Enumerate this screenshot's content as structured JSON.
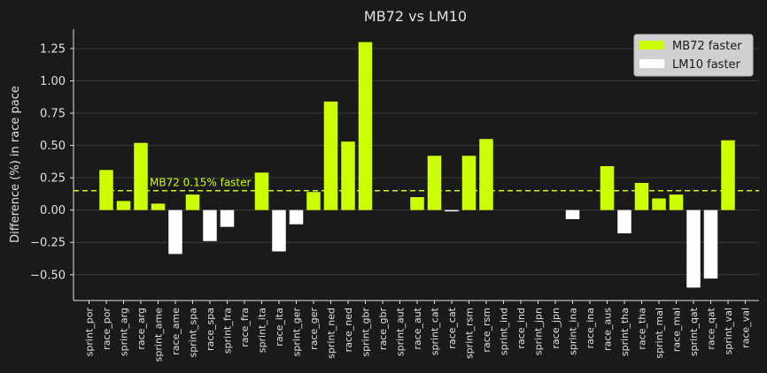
{
  "chart_data": {
    "type": "bar",
    "title": "MB72 vs LM10",
    "xlabel": "",
    "ylabel": "Difference (%) in race pace",
    "ylim": [
      -0.7,
      1.4
    ],
    "yticks": [
      -0.5,
      -0.25,
      0.0,
      0.25,
      0.5,
      0.75,
      1.0,
      1.25
    ],
    "ytick_labels": [
      "−0.50",
      "−0.25",
      "0.00",
      "0.25",
      "0.50",
      "0.75",
      "1.00",
      "1.25"
    ],
    "grid": true,
    "legend_position": "top-right",
    "categories": [
      "sprint_por",
      "race_por",
      "sprint_arg",
      "race_arg",
      "sprint_ame",
      "race_ame",
      "sprint_spa",
      "race_spa",
      "sprint_fra",
      "race_fra",
      "sprint_ita",
      "race_ita",
      "sprint_ger",
      "race_ger",
      "sprint_ned",
      "race_ned",
      "sprint_gbr",
      "race_gbr",
      "sprint_aut",
      "race_aut",
      "sprint_cat",
      "race_cat",
      "sprint_rsm",
      "race_rsm",
      "sprint_ind",
      "race_ind",
      "sprint_jpn",
      "race_jpn",
      "sprint_ina",
      "race_ina",
      "race_aus",
      "sprint_tha",
      "race_tha",
      "sprint_mal",
      "race_mal",
      "sprint_qat",
      "race_qat",
      "sprint_val",
      "race_val"
    ],
    "values": [
      0,
      0.31,
      0.07,
      0.52,
      0.05,
      -0.34,
      0.12,
      -0.24,
      -0.13,
      0,
      0.29,
      -0.32,
      -0.11,
      0.14,
      0.84,
      0.53,
      1.3,
      0,
      0,
      0.1,
      0.42,
      -0.01,
      0.42,
      0.55,
      0,
      0,
      0,
      0,
      -0.07,
      0,
      0.34,
      -0.18,
      0.21,
      0.09,
      0.12,
      -0.6,
      -0.53,
      0.54,
      0
    ],
    "series_labels": {
      "positive": "MB72 faster",
      "negative": "LM10 faster"
    },
    "reference_line": {
      "value": 0.15,
      "label": "MB72 0.15% faster"
    },
    "colors": {
      "positive": "#ccff00",
      "negative": "#ffffff",
      "background": "#1a1a1a",
      "grid": "#3a3a3a",
      "text": "#e0e0e0",
      "legend_bg": "#d0d0d0"
    }
  }
}
